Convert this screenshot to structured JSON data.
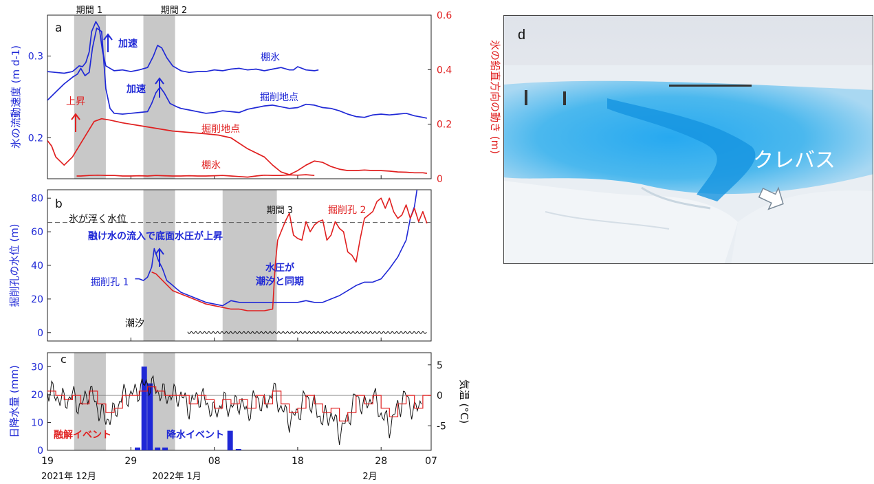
{
  "colors": {
    "blue": "#1f28d6",
    "red": "#e01f1f",
    "gray_band": "#c8c8c8",
    "black": "#111111"
  },
  "chart_data": [
    {
      "type": "line",
      "panel": "a",
      "ylabel": "氷の流動速度 (m d-1)",
      "ylabel2": "氷の鉛直方向の動き (m)",
      "ylim": [
        0.15,
        0.35
      ],
      "y2lim": [
        0,
        0.6
      ],
      "yticks": [
        "0.2",
        "0.3"
      ],
      "y2ticks": [
        "0",
        "0.2",
        "0.4",
        "0.6"
      ],
      "periods": [
        {
          "label": "期間 1",
          "start": 22.2,
          "end": 26.0
        },
        {
          "label": "期間 2",
          "start": 30.5,
          "end": 34.3
        }
      ],
      "annotations": [
        "加速",
        "加速",
        "上昇"
      ],
      "series": [
        {
          "name": "棚氷",
          "axis": "left",
          "color": "blue",
          "x": [
            19,
            20,
            21,
            22,
            22.8,
            23.2,
            23.6,
            24,
            24.3,
            24.8,
            25.2,
            25.6,
            26,
            27,
            28,
            29,
            30,
            31,
            31.7,
            32.2,
            32.7,
            33.3,
            34,
            35,
            36,
            37,
            38,
            39,
            40,
            41,
            42,
            43,
            44,
            45,
            46,
            47,
            48,
            48.5,
            49,
            50,
            51,
            51.5
          ],
          "y": [
            0.281,
            0.28,
            0.279,
            0.281,
            0.288,
            0.287,
            0.292,
            0.305,
            0.33,
            0.342,
            0.335,
            0.306,
            0.288,
            0.282,
            0.283,
            0.281,
            0.283,
            0.286,
            0.3,
            0.313,
            0.31,
            0.298,
            0.288,
            0.282,
            0.28,
            0.281,
            0.281,
            0.283,
            0.282,
            0.284,
            0.285,
            0.283,
            0.284,
            0.282,
            0.284,
            0.286,
            0.283,
            0.283,
            0.287,
            0.283,
            0.282,
            0.283
          ]
        },
        {
          "name": "掘削地点",
          "axis": "left",
          "color": "blue",
          "x": [
            19,
            20,
            21,
            22,
            22.6,
            23,
            23.5,
            24,
            24.4,
            24.9,
            25.5,
            26,
            26.5,
            27,
            28,
            29,
            30,
            31,
            31.5,
            32,
            32.5,
            33,
            33.7,
            34.5,
            35,
            36,
            37,
            38,
            39,
            40,
            41,
            42,
            43,
            44,
            45,
            46,
            47,
            48,
            49,
            50,
            51,
            52,
            53,
            54,
            55,
            56,
            57,
            58,
            59,
            60,
            61,
            62,
            63,
            64,
            64.5
          ],
          "y": [
            0.246,
            0.256,
            0.266,
            0.274,
            0.278,
            0.285,
            0.276,
            0.28,
            0.31,
            0.334,
            0.33,
            0.26,
            0.236,
            0.23,
            0.229,
            0.23,
            0.231,
            0.232,
            0.242,
            0.255,
            0.262,
            0.255,
            0.242,
            0.238,
            0.236,
            0.234,
            0.232,
            0.23,
            0.231,
            0.233,
            0.232,
            0.231,
            0.235,
            0.237,
            0.239,
            0.24,
            0.238,
            0.236,
            0.237,
            0.241,
            0.24,
            0.237,
            0.236,
            0.233,
            0.229,
            0.226,
            0.225,
            0.228,
            0.229,
            0.228,
            0.229,
            0.23,
            0.227,
            0.225,
            0.224
          ]
        },
        {
          "name": "掘削地点",
          "axis": "right",
          "color": "red",
          "x": [
            19,
            19.5,
            20,
            21,
            22,
            23,
            23.8,
            24.6,
            25.5,
            26.5,
            28,
            30,
            32,
            34,
            36,
            38,
            39.5,
            41,
            43,
            45,
            46,
            47,
            48,
            49,
            50,
            51,
            52,
            53,
            54,
            55,
            56,
            57,
            58,
            59,
            60,
            61,
            62,
            63,
            64,
            64.5
          ],
          "y": [
            0.14,
            0.12,
            0.08,
            0.05,
            0.08,
            0.13,
            0.17,
            0.21,
            0.22,
            0.215,
            0.205,
            0.195,
            0.185,
            0.175,
            0.17,
            0.165,
            0.16,
            0.15,
            0.11,
            0.08,
            0.05,
            0.025,
            0.015,
            0.03,
            0.05,
            0.065,
            0.06,
            0.045,
            0.035,
            0.03,
            0.03,
            0.032,
            0.03,
            0.03,
            0.028,
            0.025,
            0.024,
            0.022,
            0.022,
            0.02
          ]
        },
        {
          "name": "棚氷",
          "axis": "right",
          "color": "red",
          "x": [
            22.5,
            23,
            24,
            25,
            26,
            27,
            28,
            29,
            30,
            31,
            32,
            33,
            34,
            35,
            36,
            37,
            38,
            39,
            40,
            41,
            42,
            43,
            44,
            45,
            46,
            47,
            48,
            49,
            50,
            51
          ],
          "y": [
            0.01,
            0.01,
            0.012,
            0.013,
            0.012,
            0.012,
            0.01,
            0.01,
            0.011,
            0.01,
            0.012,
            0.011,
            0.01,
            0.01,
            0.011,
            0.01,
            0.01,
            0.011,
            0.012,
            0.01,
            0.008,
            0.006,
            0.01,
            0.013,
            0.012,
            0.012,
            0.014,
            0.013,
            0.015,
            0.012
          ]
        }
      ]
    },
    {
      "type": "line",
      "panel": "b",
      "ylabel": "掘削孔の水位 (m)",
      "ylim": [
        -5,
        85
      ],
      "yticks": [
        "0",
        "20",
        "40",
        "60",
        "80"
      ],
      "hline": {
        "value": 65.5,
        "label": "氷が浮く水位"
      },
      "periods": [
        {
          "label": "",
          "start": 30.5,
          "end": 34.3
        },
        {
          "label": "期間 3",
          "start": 40,
          "end": 46.5
        }
      ],
      "annotations": [
        "融け水の流入で底面水圧が上昇",
        "水圧が",
        "潮汐と同期"
      ],
      "series": [
        {
          "name": "掘削孔 1",
          "color": "blue",
          "x": [
            29.5,
            30,
            30.5,
            31,
            31.5,
            31.8,
            32,
            32.3,
            32.8,
            33.3,
            33.8,
            34.5,
            35,
            35.5,
            36,
            37,
            38,
            39,
            40,
            41,
            42,
            43,
            44,
            45,
            46,
            47,
            48,
            49,
            50,
            51,
            52,
            53,
            54,
            55,
            56,
            57,
            58,
            59,
            60,
            61,
            62,
            62.5,
            63,
            63.3
          ],
          "y": [
            32,
            32,
            31,
            33,
            39,
            50,
            47,
            43,
            38,
            31,
            29,
            26,
            24,
            23,
            22,
            20,
            18,
            17,
            16,
            19,
            18,
            18,
            18,
            18,
            18,
            18,
            18,
            18,
            19,
            18,
            18,
            20,
            22,
            25,
            28,
            30,
            30,
            32,
            38,
            45,
            55,
            68,
            75,
            85
          ]
        },
        {
          "name": "掘削孔 2",
          "color": "red",
          "x": [
            31.5,
            32,
            33,
            34,
            35,
            36,
            37,
            38,
            39,
            40,
            41,
            42,
            43,
            44,
            45,
            46,
            46.3,
            46.6,
            47,
            47.5,
            48,
            48.5,
            49,
            49.5,
            50,
            50.5,
            51,
            51.5,
            52,
            52.5,
            53,
            53.5,
            54,
            54.5,
            55,
            55.5,
            56,
            56.5,
            57,
            57.5,
            58,
            58.5,
            59,
            59.5,
            60,
            60.5,
            61,
            61.5,
            62,
            62.5,
            63,
            63.5,
            64,
            64.5
          ],
          "y": [
            36,
            35,
            30,
            25,
            23,
            21,
            19,
            17,
            16,
            15,
            14,
            14,
            13,
            13,
            13,
            14,
            40,
            55,
            60,
            66,
            71,
            58,
            56,
            55,
            66,
            60,
            64,
            66,
            67,
            55,
            58,
            66,
            62,
            60,
            48,
            46,
            42,
            56,
            68,
            70,
            72,
            78,
            80,
            74,
            80,
            72,
            68,
            70,
            76,
            68,
            74,
            66,
            72,
            65
          ]
        },
        {
          "name": "潮汐",
          "color": "black",
          "x": [
            35.8,
            64.5
          ],
          "y": [
            0,
            0
          ]
        }
      ]
    },
    {
      "type": "bar",
      "panel": "c",
      "ylabel": "日降水量 (mm)",
      "ylabel2": "気温 (°C)",
      "ylim": [
        0,
        35
      ],
      "y2lim": [
        -9,
        7
      ],
      "yticks": [
        "0",
        "10",
        "20",
        "30"
      ],
      "y2ticks": [
        "-5",
        "0",
        "5"
      ],
      "periods": [
        {
          "label": "",
          "start": 22.2,
          "end": 26.0
        },
        {
          "label": "",
          "start": 30.5,
          "end": 34.3
        }
      ],
      "annotations": [
        "融解イベント",
        "降水イベント"
      ],
      "x_ticks": [
        "19",
        "29",
        "08",
        "18",
        "28",
        "07"
      ],
      "month_labels": [
        "2021年  12月",
        "2022年  1月",
        "2月"
      ],
      "series": [
        {
          "name": "日降水量",
          "color": "blue",
          "x": [
            29.8,
            30.6,
            31.3,
            32.2,
            33.1,
            40.9,
            41.9
          ],
          "y": [
            1,
            30,
            24,
            1,
            1,
            7,
            0.5
          ]
        },
        {
          "name": "気温",
          "axis": "right",
          "color": "black",
          "x": [
            19,
            20,
            21,
            22,
            23,
            24,
            25,
            26,
            27,
            28,
            29,
            30,
            31,
            32,
            33,
            34,
            35,
            36,
            37,
            38,
            39,
            40,
            41,
            42,
            43,
            44,
            45,
            46,
            47,
            48,
            49,
            50,
            51,
            52,
            53,
            54,
            55,
            56,
            57,
            58,
            59,
            60,
            61,
            62,
            63,
            64
          ],
          "y": [
            1,
            0,
            -1,
            0,
            -2,
            1,
            -2,
            -4,
            -3,
            0,
            0,
            1,
            2,
            1,
            0,
            0,
            0,
            -2,
            0,
            -1,
            -3,
            -1,
            -2,
            -1,
            -3,
            0,
            -2,
            1,
            -2,
            -4,
            -3,
            0,
            -2,
            -4,
            -3,
            -6,
            -4,
            0,
            -2,
            0,
            -3,
            -5,
            -2,
            0,
            -3,
            0
          ]
        }
      ]
    }
  ],
  "photo": {
    "panel_label": "d",
    "annotation": "クレバス"
  }
}
